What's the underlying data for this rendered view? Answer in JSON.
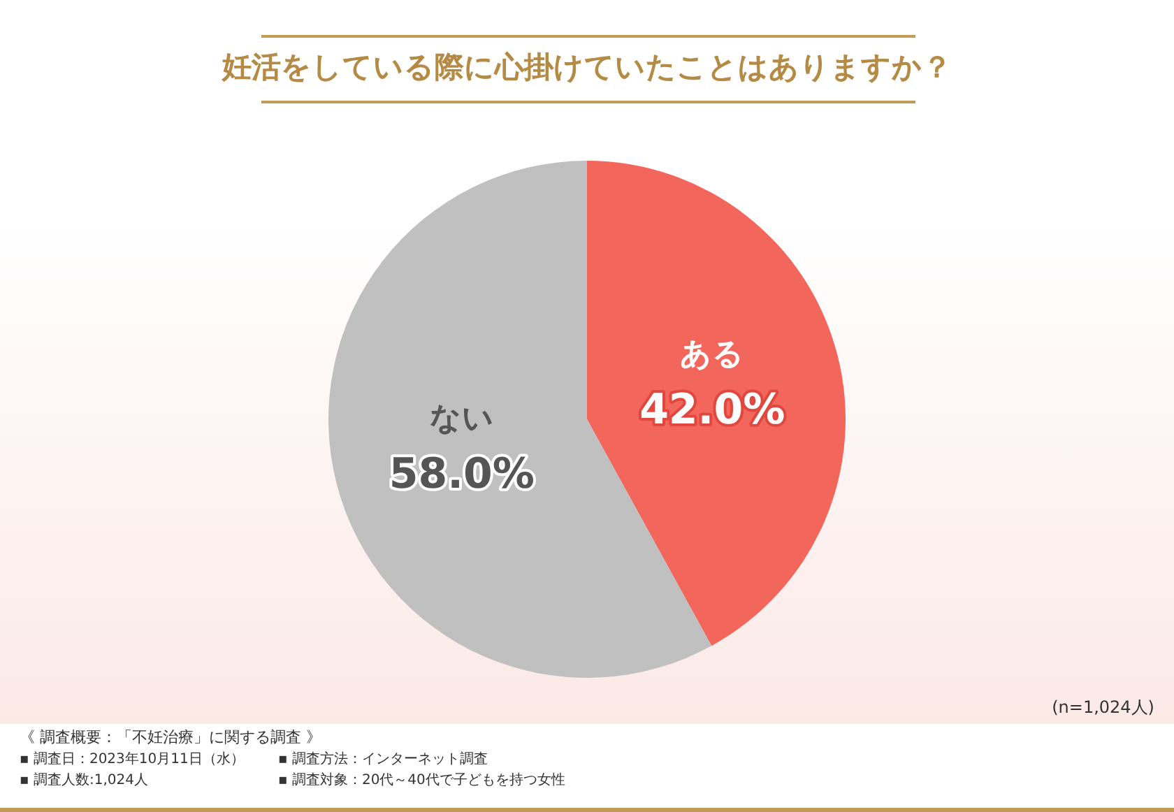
{
  "chart_data": {
    "type": "pie",
    "title": "妊活をしている際に心掛けていたことはありますか？",
    "categories": [
      "ある",
      "ない"
    ],
    "values": [
      42.0,
      58.0
    ],
    "colors": [
      "#f2665c",
      "#c0c0c0"
    ],
    "value_labels": [
      "42.0%",
      "58.0%"
    ],
    "legend": false,
    "annotations": [
      "(n=1,024人)",
      "《 調査概要：「不妊治療」に関する調査 》",
      "▪ 調査日：2023年10月11日（水）",
      "▪ 調査方法：インターネット調査",
      "▪ 調査人数:1,024人",
      "▪ 調査対象：20代～40代で子どもを持つ女性"
    ]
  }
}
